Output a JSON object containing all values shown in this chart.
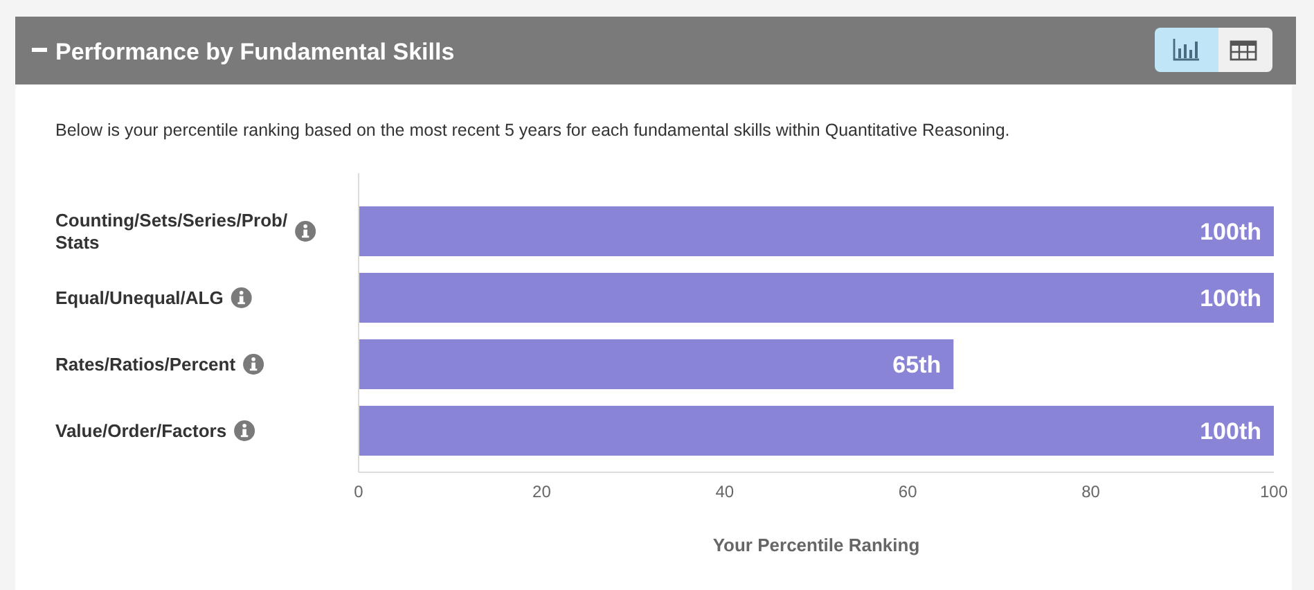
{
  "chart_data": {
    "type": "bar",
    "orientation": "horizontal",
    "title": "Performance by Fundamental Skills",
    "subtitle": "Below is your percentile ranking based on the most recent 5 years for each fundamental skills within Quantitative Reasoning.",
    "xlabel": "Your Percentile Ranking",
    "categories": [
      "Counting/Sets/Series/Prob/Stats",
      "Equal/Unequal/ALG",
      "Rates/Ratios/Percent",
      "Value/Order/Factors"
    ],
    "values": [
      100,
      100,
      65,
      100
    ],
    "value_labels": [
      "100th",
      "100th",
      "65th",
      "100th"
    ],
    "color": "#8a84d6",
    "xlim": [
      0,
      100
    ],
    "xticks": [
      0,
      20,
      40,
      60,
      80,
      100
    ]
  }
}
